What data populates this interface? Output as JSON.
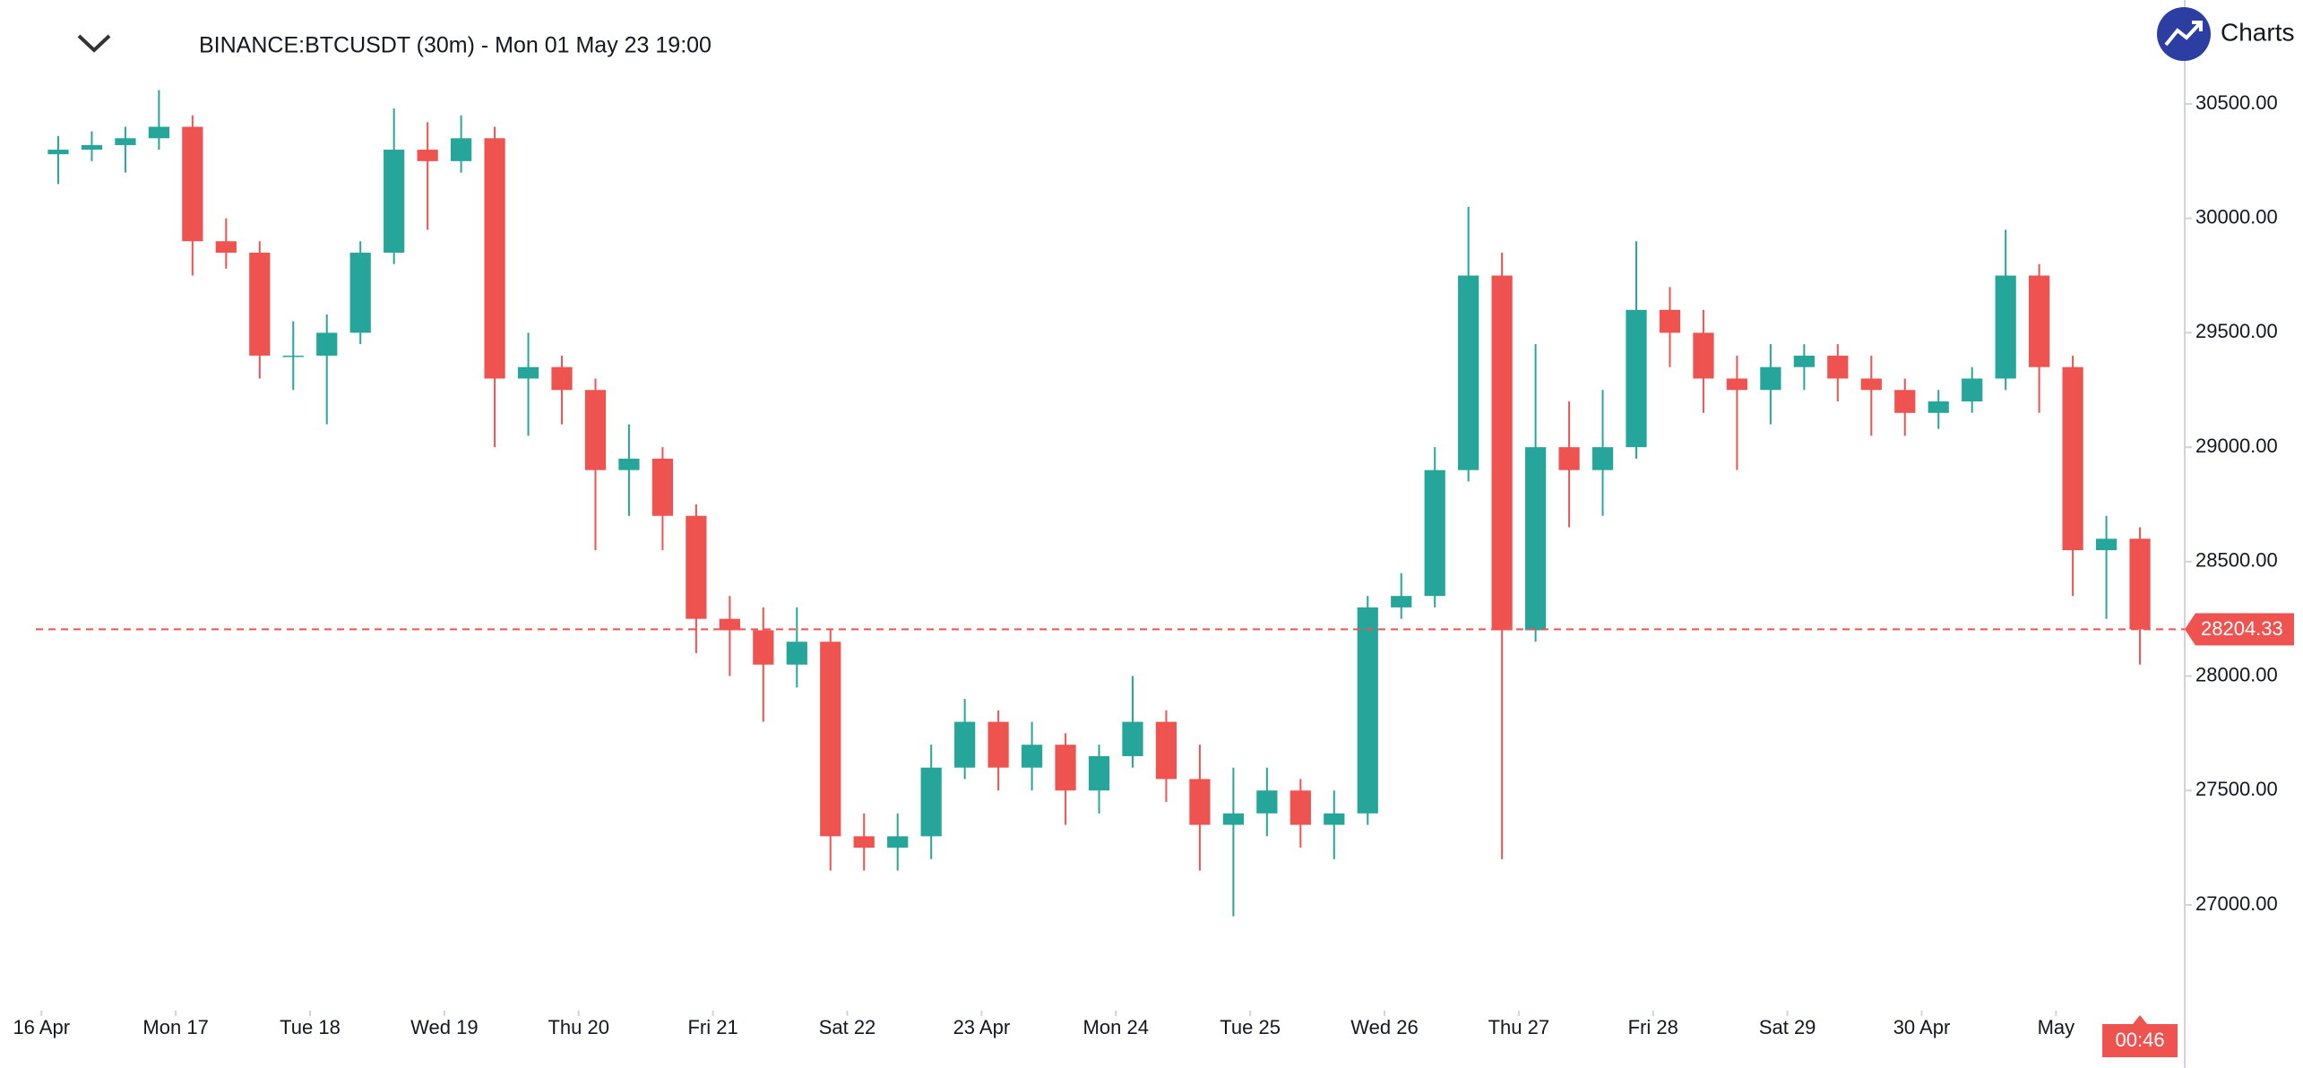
{
  "chart_data": {
    "type": "candlestick",
    "title": "BINANCE:BTCUSDT (30m) - Mon 01 May 23 19:00",
    "brand": "Charts p",
    "countdown": "00:46",
    "up_color": "#26a69a",
    "down_color": "#ef5350",
    "x": [
      3,
      9,
      15,
      21,
      27,
      33,
      39,
      45,
      51,
      57,
      63,
      69,
      75,
      81,
      87,
      93,
      99,
      105,
      111,
      117,
      123,
      129,
      135,
      141,
      147,
      153,
      159,
      165,
      171,
      177,
      183,
      189,
      195,
      201,
      207,
      213,
      219,
      225,
      231,
      237,
      243,
      249,
      255,
      261,
      267,
      273,
      279,
      285,
      291,
      297,
      303,
      309,
      315,
      321,
      327,
      333,
      339,
      345,
      351,
      357,
      363,
      369,
      375
    ],
    "open": [
      30280,
      30300,
      30320,
      30350,
      30400,
      29900,
      29850,
      29400,
      29400,
      29500,
      29850,
      30300,
      30250,
      30350,
      29300,
      29350,
      29250,
      28900,
      28950,
      28700,
      28250,
      28200,
      28050,
      28150,
      27300,
      27250,
      27300,
      27600,
      27800,
      27600,
      27700,
      27500,
      27650,
      27800,
      27550,
      27350,
      27400,
      27500,
      27350,
      27400,
      28300,
      28350,
      28900,
      29750,
      28200,
      29000,
      28900,
      29000,
      29600,
      29500,
      29300,
      29250,
      29350,
      29400,
      29300,
      29250,
      29150,
      29200,
      29300,
      29750,
      29350,
      28550,
      28600
    ],
    "high": [
      30360,
      30380,
      30400,
      30560,
      30450,
      30000,
      29900,
      29550,
      29580,
      29900,
      30480,
      30420,
      30450,
      30400,
      29500,
      29400,
      29300,
      29100,
      29000,
      28750,
      28350,
      28300,
      28300,
      28200,
      27400,
      27400,
      27700,
      27900,
      27850,
      27800,
      27750,
      27700,
      28000,
      27850,
      27700,
      27600,
      27600,
      27550,
      27500,
      28350,
      28450,
      29000,
      30050,
      29850,
      29450,
      29200,
      29250,
      29900,
      29700,
      29600,
      29400,
      29450,
      29450,
      29450,
      29400,
      29300,
      29250,
      29350,
      29950,
      29800,
      29400,
      28700,
      28650
    ],
    "low": [
      30150,
      30250,
      30200,
      30300,
      29750,
      29780,
      29300,
      29250,
      29100,
      29450,
      29800,
      29950,
      30200,
      29000,
      29050,
      29100,
      28550,
      28700,
      28550,
      28100,
      28000,
      27800,
      27950,
      27150,
      27150,
      27150,
      27200,
      27550,
      27500,
      27500,
      27350,
      27400,
      27600,
      27450,
      27150,
      26950,
      27300,
      27250,
      27200,
      27350,
      28250,
      28300,
      28850,
      27200,
      28150,
      28650,
      28700,
      28950,
      29350,
      29150,
      28900,
      29100,
      29250,
      29200,
      29050,
      29050,
      29080,
      29150,
      29250,
      29150,
      28350,
      28250,
      28050
    ],
    "close": [
      30300,
      30320,
      30350,
      30400,
      29900,
      29850,
      29400,
      29400,
      29500,
      29850,
      30300,
      30250,
      30350,
      29300,
      29350,
      29250,
      28900,
      28950,
      28700,
      28250,
      28200,
      28050,
      28150,
      27300,
      27250,
      27300,
      27600,
      27800,
      27600,
      27700,
      27500,
      27650,
      27800,
      27550,
      27350,
      27400,
      27500,
      27350,
      27400,
      28300,
      28350,
      28900,
      29750,
      28200,
      29000,
      28900,
      29000,
      29600,
      29500,
      29300,
      29250,
      29350,
      29400,
      29300,
      29250,
      29150,
      29200,
      29300,
      29750,
      29350,
      28550,
      28600,
      28204.33
    ],
    "xlim": [
      -1,
      383
    ],
    "ylim": [
      26538,
      30954
    ],
    "xticks": [
      {
        "value": 0,
        "label": "16 Apr"
      },
      {
        "value": 24,
        "label": "Mon 17"
      },
      {
        "value": 48,
        "label": "Tue 18"
      },
      {
        "value": 72,
        "label": "Wed 19"
      },
      {
        "value": 96,
        "label": "Thu 20"
      },
      {
        "value": 120,
        "label": "Fri 21"
      },
      {
        "value": 144,
        "label": "Sat 22"
      },
      {
        "value": 168,
        "label": "23 Apr"
      },
      {
        "value": 192,
        "label": "Mon 24"
      },
      {
        "value": 216,
        "label": "Tue 25"
      },
      {
        "value": 240,
        "label": "Wed 26"
      },
      {
        "value": 264,
        "label": "Thu 27"
      },
      {
        "value": 288,
        "label": "Fri 28"
      },
      {
        "value": 312,
        "label": "Sat 29"
      },
      {
        "value": 336,
        "label": "30 Apr"
      },
      {
        "value": 360,
        "label": "May"
      }
    ],
    "yticks": [
      {
        "value": 27000,
        "label": "27000.00"
      },
      {
        "value": 27500,
        "label": "27500.00"
      },
      {
        "value": 28000,
        "label": "28000.00"
      },
      {
        "value": 28500,
        "label": "28500.00"
      },
      {
        "value": 29000,
        "label": "29000.00"
      },
      {
        "value": 29500,
        "label": "29500.00"
      },
      {
        "value": 30000,
        "label": "30000.00"
      },
      {
        "value": 30500,
        "label": "30500.00"
      }
    ]
  }
}
